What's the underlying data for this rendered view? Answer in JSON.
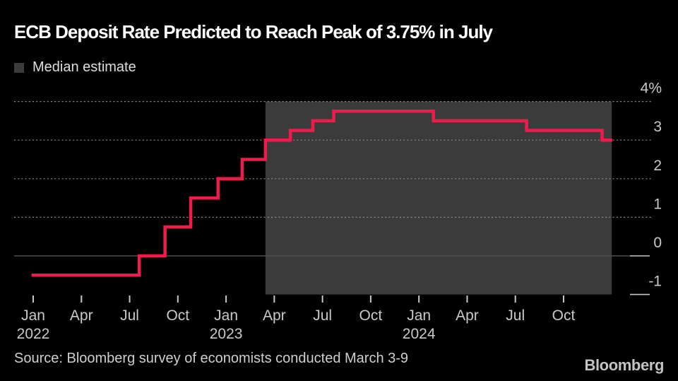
{
  "chart": {
    "title": "ECB Deposit Rate Predicted to Reach Peak of 3.75% in July",
    "legend_label": "Median estimate"
  },
  "footer": {
    "source": "Source: Bloomberg survey of economists conducted March 3-9",
    "logo": "Bloomberg"
  },
  "colors": {
    "background": "#000000",
    "line": "#ee1c4c",
    "forecast_band": "#3b3b3b",
    "grid": "#8f8f8f",
    "zero_line": "#4d4d4d",
    "axis_tick": "#c8c8c8",
    "axis_text": "#c9c9c9"
  },
  "chart_data": {
    "type": "line",
    "line_style": "step",
    "title": "ECB Deposit Rate Predicted to Reach Peak of 3.75% in July",
    "legend": [
      "Median estimate"
    ],
    "unit": "%",
    "ylim": [
      -1,
      4
    ],
    "grid": "dotted-horizontal",
    "legend_position": "top-left",
    "y_axis_side": "right",
    "y_ticks": [
      {
        "label": "4%",
        "value": 4
      },
      {
        "label": "3",
        "value": 3
      },
      {
        "label": "2",
        "value": 2
      },
      {
        "label": "1",
        "value": 1
      },
      {
        "label": "0",
        "value": 0,
        "solid_line": true
      },
      {
        "label": "-1",
        "value": -1,
        "edge_only": true
      }
    ],
    "x_ticks": [
      {
        "label": "Jan",
        "year": "2022",
        "month": 0
      },
      {
        "label": "Apr",
        "month": 3
      },
      {
        "label": "Jul",
        "month": 6
      },
      {
        "label": "Oct",
        "month": 9
      },
      {
        "label": "Jan",
        "year": "2023",
        "month": 12
      },
      {
        "label": "Apr",
        "month": 15
      },
      {
        "label": "Jul",
        "month": 18
      },
      {
        "label": "Oct",
        "month": 21
      },
      {
        "label": "Jan",
        "year": "2024",
        "month": 24
      },
      {
        "label": "Apr",
        "month": 27
      },
      {
        "label": "Jul",
        "month": 30
      },
      {
        "label": "Oct",
        "month": 33
      }
    ],
    "series_name": "ECB deposit rate, median estimate (%)",
    "steps": [
      {
        "date": "Jan 2022",
        "month": -0.1,
        "value": -0.5
      },
      {
        "date": "Jul 2022",
        "month": 6.6,
        "value": 0
      },
      {
        "date": "Sep 2022",
        "month": 8.2,
        "value": 0.75
      },
      {
        "date": "Nov 2022",
        "month": 9.8,
        "value": 1.5
      },
      {
        "date": "Dec 2022",
        "month": 11.5,
        "value": 2
      },
      {
        "date": "Feb 2023",
        "month": 13,
        "value": 2.5
      },
      {
        "date": "Mar 2023",
        "month": 14.45,
        "value": 3
      },
      {
        "date": "May 2023",
        "month": 16,
        "value": 3.25
      },
      {
        "date": "Jun 2023",
        "month": 17.4,
        "value": 3.5
      },
      {
        "date": "Jul 2023",
        "month": 18.7,
        "value": 3.75
      },
      {
        "date": "Feb 2024",
        "month": 24.9,
        "value": 3.5
      },
      {
        "date": "Jul 2024",
        "month": 30.7,
        "value": 3.25
      },
      {
        "date": "Dec 2024",
        "month": 35.4,
        "value": 3
      }
    ],
    "end_month": 36.03,
    "forecast_band": {
      "start_month": 14.45,
      "end_month": 36.0
    }
  }
}
